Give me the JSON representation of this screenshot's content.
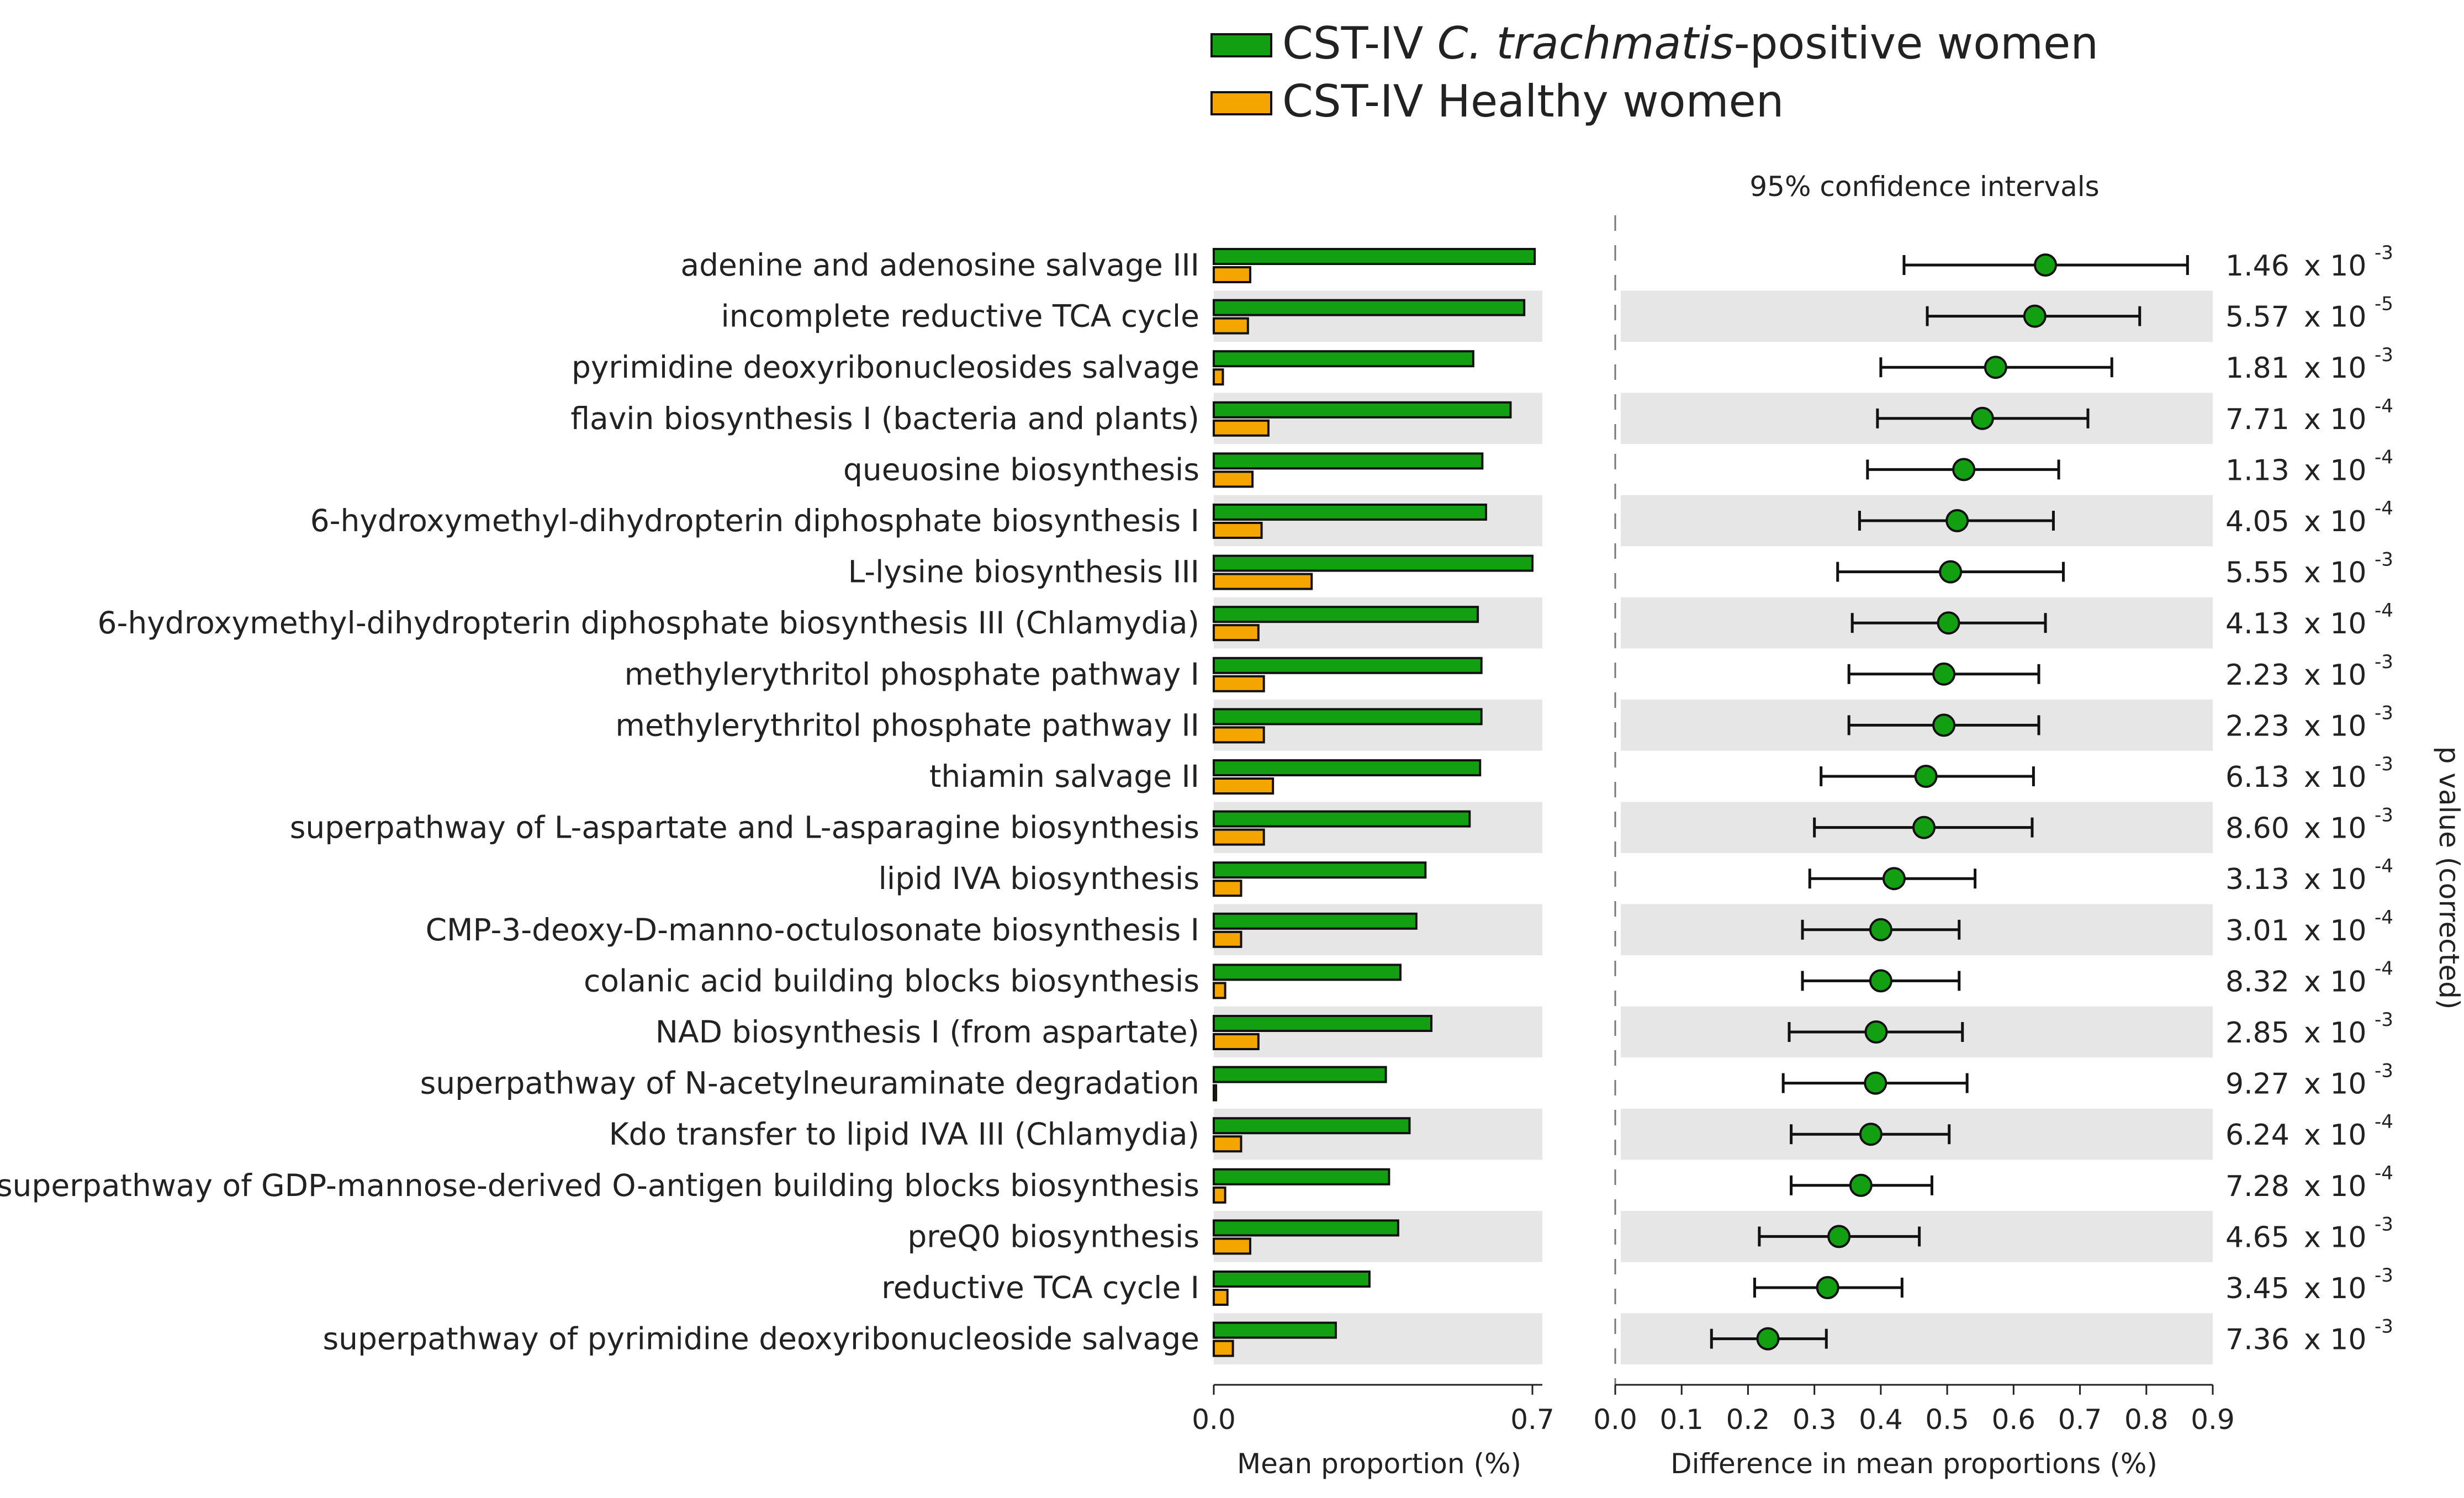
{
  "legend": {
    "items": [
      {
        "label_pre": "CST-IV ",
        "label_italic": "C. trachmatis",
        "label_post": "-positive women",
        "color": "#12a012"
      },
      {
        "label_pre": "CST-IV Healthy women",
        "label_italic": "",
        "label_post": "",
        "color": "#f5a500"
      }
    ]
  },
  "ci_title": "95% confidence intervals",
  "side_label": "p value (corrected)",
  "chart_data": [
    {
      "type": "bar",
      "orientation": "horizontal",
      "title": "",
      "xlabel": "Mean proportion (%)",
      "xlim": [
        0,
        0.7
      ],
      "xticks": [
        "0.0",
        "0.7"
      ],
      "categories": [
        "adenine and adenosine salvage III",
        "incomplete reductive TCA cycle",
        "pyrimidine deoxyribonucleosides salvage",
        "flavin biosynthesis I (bacteria and plants)",
        "queuosine biosynthesis",
        "6-hydroxymethyl-dihydropterin diphosphate biosynthesis I",
        "L-lysine biosynthesis III",
        "6-hydroxymethyl-dihydropterin diphosphate biosynthesis III (Chlamydia)",
        "methylerythritol phosphate pathway I",
        "methylerythritol phosphate pathway II",
        "thiamin salvage II",
        "superpathway of L-aspartate and L-asparagine biosynthesis",
        "lipid IVA biosynthesis",
        "CMP-3-deoxy-D-manno-octulosonate biosynthesis I",
        "colanic acid building blocks biosynthesis",
        "NAD biosynthesis I (from aspartate)",
        "superpathway of N-acetylneuraminate degradation",
        "Kdo transfer to lipid IVA III (Chlamydia)",
        "superpathway of GDP-mannose-derived O-antigen building blocks biosynthesis",
        "preQ0 biosynthesis",
        "reductive TCA cycle I",
        "superpathway of pyrimidine deoxyribonucleoside salvage"
      ],
      "series": [
        {
          "name": "CST-IV C. trachmatis-positive women",
          "color": "#12a012",
          "values": [
            0.705,
            0.682,
            0.57,
            0.652,
            0.59,
            0.598,
            0.7,
            0.58,
            0.588,
            0.588,
            0.585,
            0.562,
            0.465,
            0.445,
            0.41,
            0.478,
            0.378,
            0.43,
            0.385,
            0.405,
            0.342,
            0.268
          ]
        },
        {
          "name": "CST-IV Healthy women",
          "color": "#f5a500",
          "values": [
            0.08,
            0.075,
            0.02,
            0.12,
            0.085,
            0.105,
            0.215,
            0.098,
            0.11,
            0.11,
            0.13,
            0.11,
            0.06,
            0.06,
            0.025,
            0.098,
            0.005,
            0.06,
            0.025,
            0.08,
            0.03,
            0.042
          ]
        }
      ]
    },
    {
      "type": "scatter",
      "title": "95% confidence intervals",
      "xlabel": "Difference in mean proportions (%)",
      "xlim": [
        0,
        0.9
      ],
      "xticks": [
        "0.0",
        "0.1",
        "0.2",
        "0.3",
        "0.4",
        "0.5",
        "0.6",
        "0.7",
        "0.8",
        "0.9"
      ],
      "point_color": "#12a012",
      "points": [
        {
          "x": 0.648,
          "lo": 0.435,
          "hi": 0.862
        },
        {
          "x": 0.632,
          "lo": 0.47,
          "hi": 0.79
        },
        {
          "x": 0.573,
          "lo": 0.4,
          "hi": 0.748
        },
        {
          "x": 0.553,
          "lo": 0.395,
          "hi": 0.712
        },
        {
          "x": 0.525,
          "lo": 0.38,
          "hi": 0.668
        },
        {
          "x": 0.515,
          "lo": 0.368,
          "hi": 0.66
        },
        {
          "x": 0.505,
          "lo": 0.335,
          "hi": 0.675
        },
        {
          "x": 0.502,
          "lo": 0.357,
          "hi": 0.648
        },
        {
          "x": 0.495,
          "lo": 0.352,
          "hi": 0.638
        },
        {
          "x": 0.495,
          "lo": 0.352,
          "hi": 0.638
        },
        {
          "x": 0.468,
          "lo": 0.31,
          "hi": 0.63
        },
        {
          "x": 0.465,
          "lo": 0.3,
          "hi": 0.628
        },
        {
          "x": 0.42,
          "lo": 0.293,
          "hi": 0.542
        },
        {
          "x": 0.4,
          "lo": 0.282,
          "hi": 0.518
        },
        {
          "x": 0.4,
          "lo": 0.282,
          "hi": 0.518
        },
        {
          "x": 0.393,
          "lo": 0.262,
          "hi": 0.523
        },
        {
          "x": 0.392,
          "lo": 0.253,
          "hi": 0.53
        },
        {
          "x": 0.385,
          "lo": 0.265,
          "hi": 0.503
        },
        {
          "x": 0.37,
          "lo": 0.265,
          "hi": 0.477
        },
        {
          "x": 0.337,
          "lo": 0.217,
          "hi": 0.458
        },
        {
          "x": 0.32,
          "lo": 0.21,
          "hi": 0.432
        },
        {
          "x": 0.23,
          "lo": 0.145,
          "hi": 0.318
        }
      ]
    },
    {
      "type": "table",
      "title": "p value (corrected)",
      "rows": [
        {
          "mantissa": "1.46",
          "base": "x 10",
          "exp": "-3"
        },
        {
          "mantissa": "5.57",
          "base": "x 10",
          "exp": "-5"
        },
        {
          "mantissa": "1.81",
          "base": "x 10",
          "exp": "-3"
        },
        {
          "mantissa": "7.71",
          "base": "x 10",
          "exp": "-4"
        },
        {
          "mantissa": "1.13",
          "base": "x 10",
          "exp": "-4"
        },
        {
          "mantissa": "4.05",
          "base": "x 10",
          "exp": "-4"
        },
        {
          "mantissa": "5.55",
          "base": "x 10",
          "exp": "-3"
        },
        {
          "mantissa": "4.13",
          "base": "x 10",
          "exp": "-4"
        },
        {
          "mantissa": "2.23",
          "base": "x 10",
          "exp": "-3"
        },
        {
          "mantissa": "2.23",
          "base": "x 10",
          "exp": "-3"
        },
        {
          "mantissa": "6.13",
          "base": "x 10",
          "exp": "-3"
        },
        {
          "mantissa": "8.60",
          "base": "x 10",
          "exp": "-3"
        },
        {
          "mantissa": "3.13",
          "base": "x 10",
          "exp": "-4"
        },
        {
          "mantissa": "3.01",
          "base": "x 10",
          "exp": "-4"
        },
        {
          "mantissa": "8.32",
          "base": "x 10",
          "exp": "-4"
        },
        {
          "mantissa": "2.85",
          "base": "x 10",
          "exp": "-3"
        },
        {
          "mantissa": "9.27",
          "base": "x 10",
          "exp": "-3"
        },
        {
          "mantissa": "6.24",
          "base": "x 10",
          "exp": "-4"
        },
        {
          "mantissa": "7.28",
          "base": "x 10",
          "exp": "-4"
        },
        {
          "mantissa": "4.65",
          "base": "x 10",
          "exp": "-3"
        },
        {
          "mantissa": "3.45",
          "base": "x 10",
          "exp": "-3"
        },
        {
          "mantissa": "7.36",
          "base": "x 10",
          "exp": "-3"
        }
      ]
    }
  ]
}
